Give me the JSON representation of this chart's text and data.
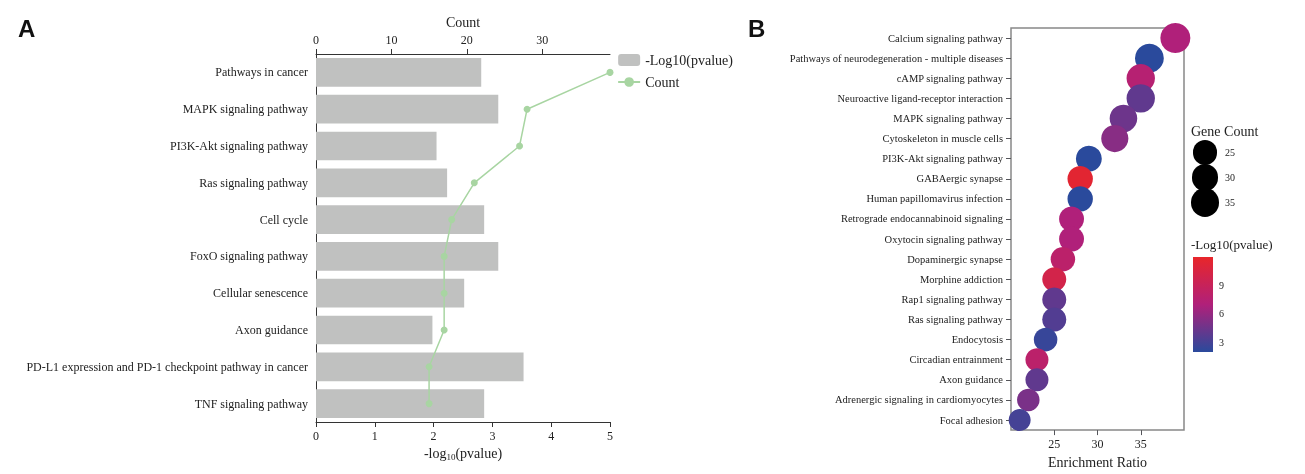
{
  "chart_data": [
    {
      "type": "bar",
      "orientation": "horizontal",
      "annotations": [
        "A"
      ],
      "categories": [
        "Pathways in cancer",
        "MAPK signaling pathway",
        "PI3K-Akt signaling pathway",
        "Ras signaling pathway",
        "Cell cycle",
        "FoxO signaling pathway",
        "Cellular senescence",
        "Axon guidance",
        "PD-L1 expression and PD-1 checkpoint pathway in cancer",
        "TNF signaling pathway"
      ],
      "series": [
        {
          "name": "-Log10(pvalue)",
          "type": "bar",
          "color": "#c0c1c0",
          "values": [
            2.81,
            3.1,
            2.05,
            2.23,
            2.86,
            3.1,
            2.52,
            1.98,
            3.53,
            2.86
          ]
        },
        {
          "name": "Count",
          "type": "line",
          "axis": "x2",
          "color": "#a8d5a2",
          "values": [
            39,
            28,
            27,
            21,
            18,
            17,
            17,
            17,
            15,
            15
          ]
        }
      ],
      "xlabel": "-log$_{10}$(pvalue)",
      "x2label": "Count",
      "xlim": [
        0,
        5
      ],
      "xticks": [
        0,
        1,
        2,
        3,
        4,
        5
      ],
      "x2lim": [
        0,
        39
      ],
      "x2ticks": [
        0,
        10,
        20,
        30
      ],
      "grid": false,
      "legend": "top right",
      "marker": "circle",
      "line_style": "solid"
    },
    {
      "type": "bubble",
      "orientation": "horizontal",
      "annotations": [
        "B"
      ],
      "categories": [
        "Calcium signaling pathway",
        "Pathways of neurodegeneration - multiple diseases",
        "cAMP signaling pathway",
        "Neuroactive ligand-receptor interaction",
        "MAPK signaling pathway",
        "Cytoskeleton in muscle cells",
        "PI3K-Akt signaling pathway",
        "GABAergic synapse",
        "Human papillomavirus infection",
        "Retrograde endocannabinoid signaling",
        "Oxytocin signaling pathway",
        "Dopaminergic synapse",
        "Morphine addiction",
        "Rap1 signaling pathway",
        "Ras signaling pathway",
        "Endocytosis",
        "Circadian entrainment",
        "Axon guidance",
        "Adrenergic signaling in cardiomyocytes",
        "Focal adhesion"
      ],
      "values": [
        39,
        36,
        35,
        35,
        33,
        32,
        29,
        28,
        28,
        27,
        27,
        26,
        25,
        25,
        25,
        24,
        23,
        23,
        22,
        21
      ],
      "sizes": [
        39,
        36,
        35,
        35,
        33,
        32,
        29,
        28,
        28,
        27,
        27,
        26,
        25,
        25,
        25,
        24,
        23,
        23,
        22,
        21
      ],
      "cvalues": [
        7,
        2,
        7.5,
        4,
        4.5,
        5.5,
        2,
        11.5,
        2,
        7,
        7,
        8,
        10,
        4,
        3.5,
        2.5,
        8,
        4,
        5,
        3
      ],
      "size_legend": [
        25,
        30,
        35
      ],
      "legend_title": "Gene Count",
      "clabel": "-Log10(pvalue)",
      "clim": [
        2,
        12
      ],
      "cticks": [
        3,
        6,
        9
      ],
      "xlabel": "Enrichment Ratio",
      "xlim": [
        20,
        40
      ],
      "xticks": [
        25,
        30,
        35
      ],
      "grid": false,
      "marker": "circle"
    }
  ]
}
